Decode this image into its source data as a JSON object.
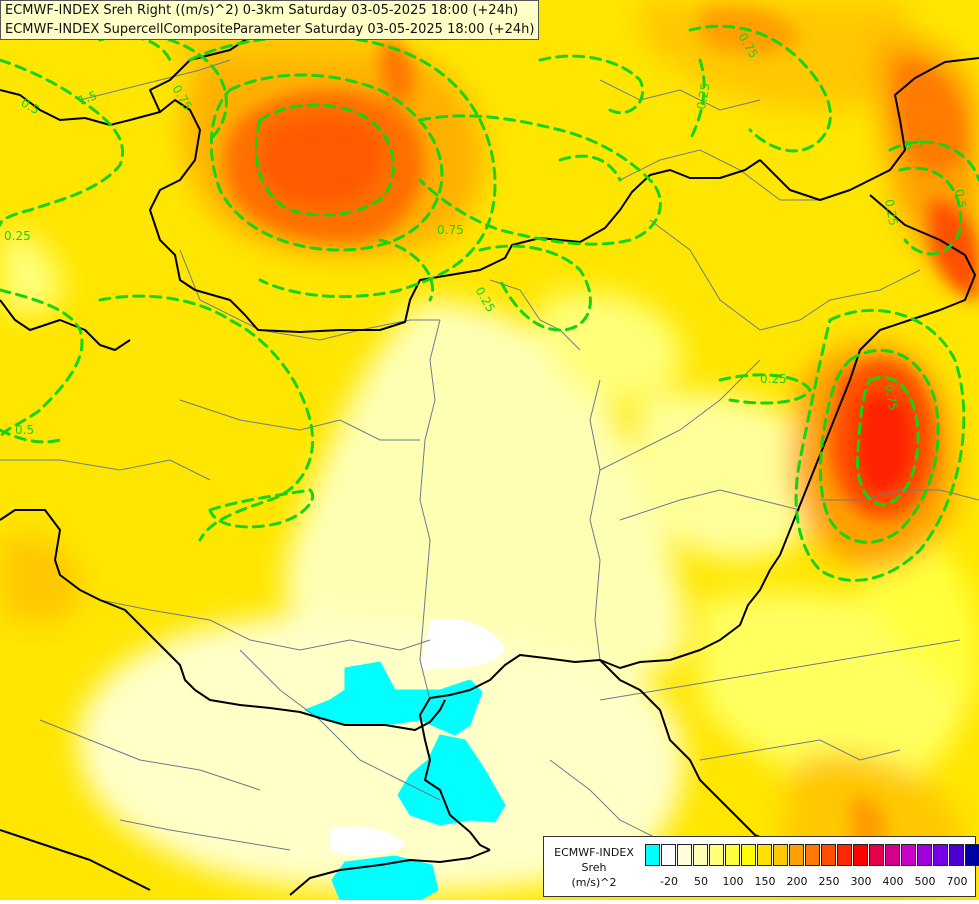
{
  "header": {
    "line1": "ECMWF-INDEX Sreh Right ((m/s)^2) 0-3km Saturday 03-05-2025 18:00 (+24h)",
    "line2": "ECMWF-INDEX SupercellCompositeParameter Saturday 03-05-2025 18:00 (+24h)"
  },
  "legend": {
    "title_lines": [
      "ECMWF-INDEX",
      "Sreh",
      "(m/s)^2"
    ],
    "colors": [
      "#00ffff",
      "#ffffff",
      "#ffffdc",
      "#ffffb4",
      "#ffff78",
      "#ffff3c",
      "#ffff00",
      "#ffe000",
      "#ffc800",
      "#ffa000",
      "#ff7800",
      "#ff5000",
      "#ff2800",
      "#ff0000",
      "#e6004b",
      "#d2008c",
      "#c800c8",
      "#a000dc",
      "#7800e6",
      "#4b00d2",
      "#0000a0"
    ],
    "tick_labels": [
      "-20",
      "50",
      "100",
      "150",
      "200",
      "250",
      "300",
      "400",
      "500",
      "700"
    ]
  },
  "contour_labels": [
    "0.25",
    "0.25",
    "0.25",
    "0.25",
    "0.5",
    "0.5",
    "0.5",
    "0.75",
    "0.75",
    "0.75",
    "0.75",
    "1.5",
    "0.25",
    "0.5"
  ],
  "colors": {
    "contour": "#14d414",
    "border": "#000000",
    "river": "#6b7b8c"
  }
}
